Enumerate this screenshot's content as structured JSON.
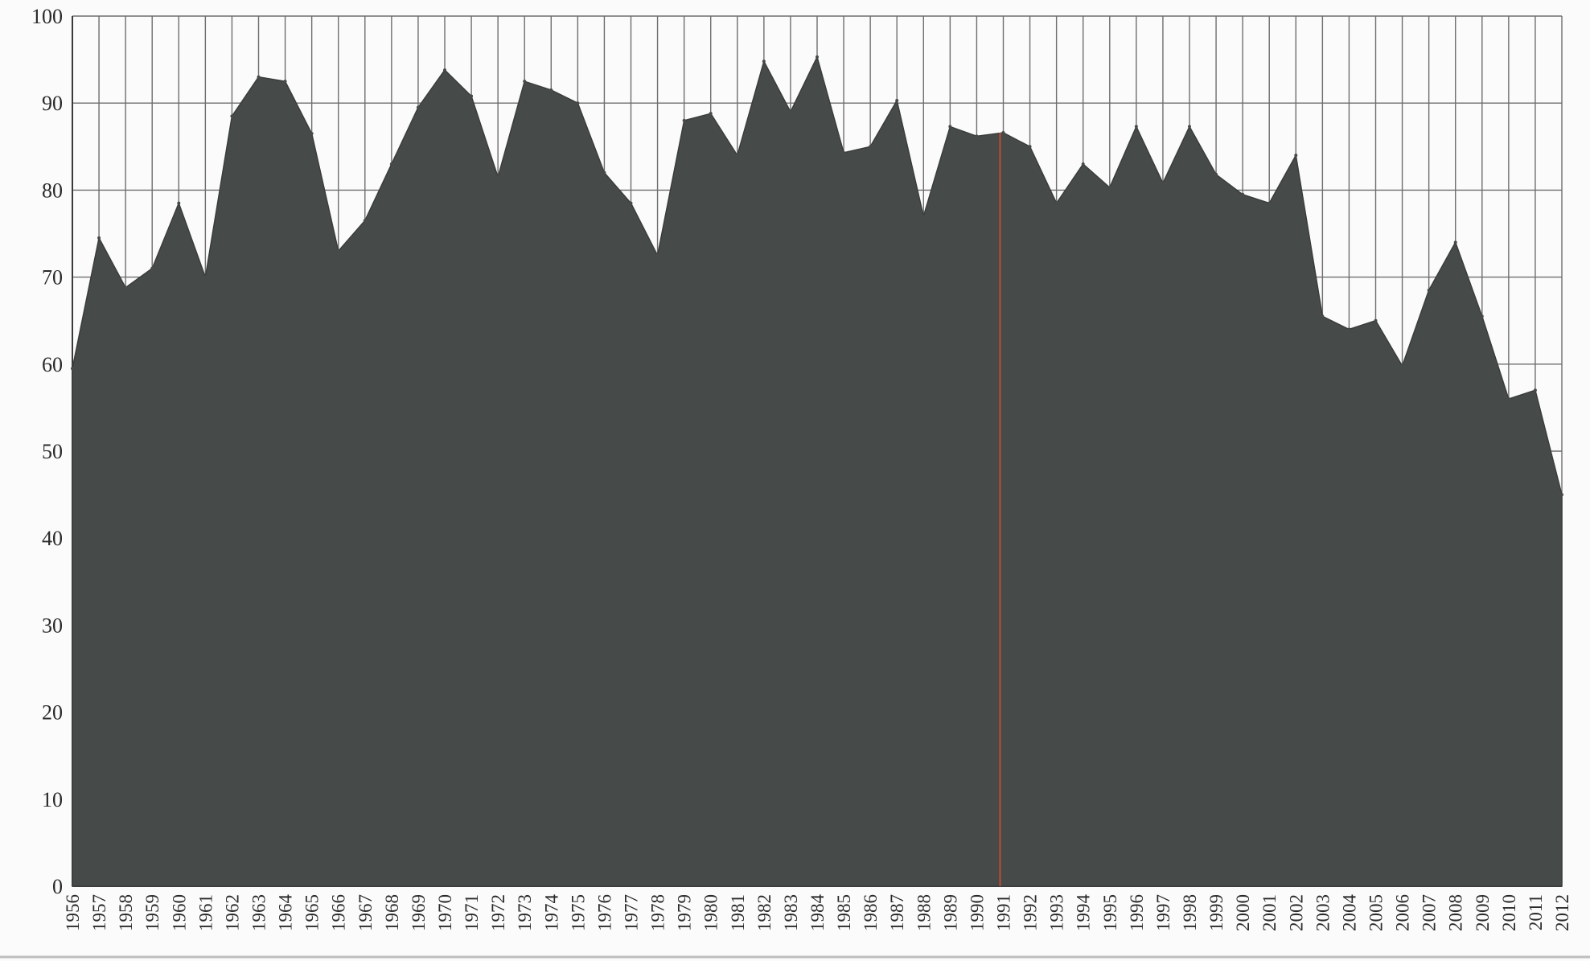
{
  "colors": {
    "area": "#464a48",
    "grid": "#6e6e6e",
    "marker": "#b84a3a",
    "background": "#fbfbfb"
  },
  "chart_data": {
    "type": "area",
    "title": "",
    "xlabel": "",
    "ylabel": "",
    "ylim": [
      0,
      100
    ],
    "grid": true,
    "y_ticks": [
      "0",
      "10",
      "20",
      "30",
      "40",
      "50",
      "60",
      "70",
      "80",
      "90",
      "100"
    ],
    "x": [
      "1956",
      "1957",
      "1958",
      "1959",
      "1960",
      "1961",
      "1962",
      "1963",
      "1964",
      "1965",
      "1966",
      "1967",
      "1968",
      "1969",
      "1970",
      "1971",
      "1972",
      "1973",
      "1974",
      "1975",
      "1976",
      "1977",
      "1978",
      "1979",
      "1980",
      "1981",
      "1982",
      "1983",
      "1984",
      "1985",
      "1986",
      "1987",
      "1988",
      "1989",
      "1990",
      "1991",
      "1992",
      "1993",
      "1994",
      "1995",
      "1996",
      "1997",
      "1998",
      "1999",
      "2000",
      "2001",
      "2002",
      "2003",
      "2004",
      "2005",
      "2006",
      "2007",
      "2008",
      "2009",
      "2010",
      "2011",
      "2012"
    ],
    "series": [
      {
        "values": [
          59.5,
          74.5,
          68.8,
          71.0,
          78.5,
          70.0,
          88.5,
          93.0,
          92.5,
          86.5,
          73.0,
          76.5,
          83.0,
          89.5,
          93.8,
          90.8,
          81.5,
          92.5,
          91.5,
          90.0,
          82.0,
          78.5,
          72.5,
          88.0,
          88.8,
          84.0,
          94.8,
          89.0,
          95.3,
          84.3,
          85.0,
          90.3,
          77.0,
          87.3,
          86.2,
          86.6,
          85.0,
          78.5,
          83.0,
          80.3,
          87.3,
          80.8,
          87.3,
          81.8,
          79.5,
          78.5,
          84.0,
          65.5,
          64.0,
          65.0,
          59.8,
          68.5,
          74.0,
          65.5,
          56.0,
          57.0,
          45.0
        ]
      }
    ],
    "vertical_marker": {
      "x": "1991"
    }
  }
}
